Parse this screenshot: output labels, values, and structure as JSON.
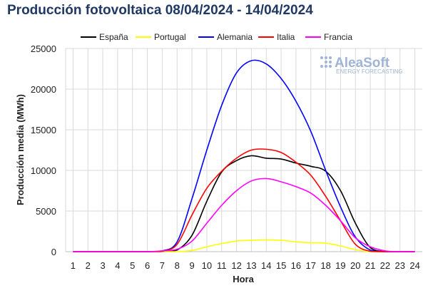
{
  "chart_data": {
    "type": "line",
    "title": "Producción fotovoltaica 08/04/2024 - 14/04/2024",
    "xlabel": "Hora",
    "ylabel": "Producción media (MWh)",
    "x": [
      1,
      2,
      3,
      4,
      5,
      6,
      7,
      8,
      9,
      10,
      11,
      12,
      13,
      14,
      15,
      16,
      17,
      18,
      19,
      20,
      21,
      22,
      23,
      24
    ],
    "x_ticks": [
      "1",
      "2",
      "3",
      "4",
      "5",
      "6",
      "7",
      "8",
      "9",
      "10",
      "11",
      "12",
      "13",
      "14",
      "15",
      "16",
      "17",
      "18",
      "19",
      "20",
      "21",
      "22",
      "23",
      "24"
    ],
    "ylim": [
      0,
      25000
    ],
    "y_ticks": [
      0,
      5000,
      10000,
      15000,
      20000,
      25000
    ],
    "y_tick_labels": [
      "0",
      "5000",
      "10000",
      "15000",
      "20000",
      "25000"
    ],
    "grid": true,
    "legend_position": "top",
    "series": [
      {
        "name": "España",
        "color": "#000000",
        "values": [
          0,
          0,
          0,
          0,
          0,
          0,
          0,
          200,
          2000,
          6200,
          9800,
          11200,
          11800,
          11500,
          11400,
          10900,
          10500,
          9900,
          7500,
          3500,
          500,
          0,
          0,
          0
        ]
      },
      {
        "name": "Portugal",
        "color": "#ffff00",
        "values": [
          0,
          0,
          0,
          0,
          0,
          0,
          0,
          0,
          150,
          600,
          1000,
          1300,
          1400,
          1450,
          1400,
          1200,
          1100,
          1050,
          700,
          250,
          0,
          0,
          0,
          0
        ]
      },
      {
        "name": "Alemania",
        "color": "#0000ff",
        "values": [
          0,
          0,
          0,
          0,
          0,
          0,
          100,
          1200,
          6500,
          12500,
          18000,
          22000,
          23500,
          23100,
          21300,
          18500,
          14800,
          10000,
          5500,
          1800,
          200,
          0,
          0,
          0
        ]
      },
      {
        "name": "Italia",
        "color": "#ff0000",
        "values": [
          0,
          0,
          0,
          0,
          0,
          0,
          50,
          900,
          4500,
          7800,
          9900,
          11500,
          12500,
          12600,
          12200,
          11000,
          9400,
          6800,
          3800,
          900,
          50,
          0,
          0,
          0
        ]
      },
      {
        "name": "Francia",
        "color": "#ff00ff",
        "values": [
          0,
          0,
          0,
          0,
          0,
          0,
          100,
          300,
          1300,
          3500,
          5700,
          7500,
          8700,
          9000,
          8600,
          8000,
          7200,
          5700,
          3800,
          1700,
          600,
          100,
          0,
          0
        ]
      }
    ]
  },
  "branding": {
    "logo_text": "AleaSoft",
    "logo_subtext": "ENERGY FORECASTING",
    "logo_color": "#9fb4d6"
  }
}
